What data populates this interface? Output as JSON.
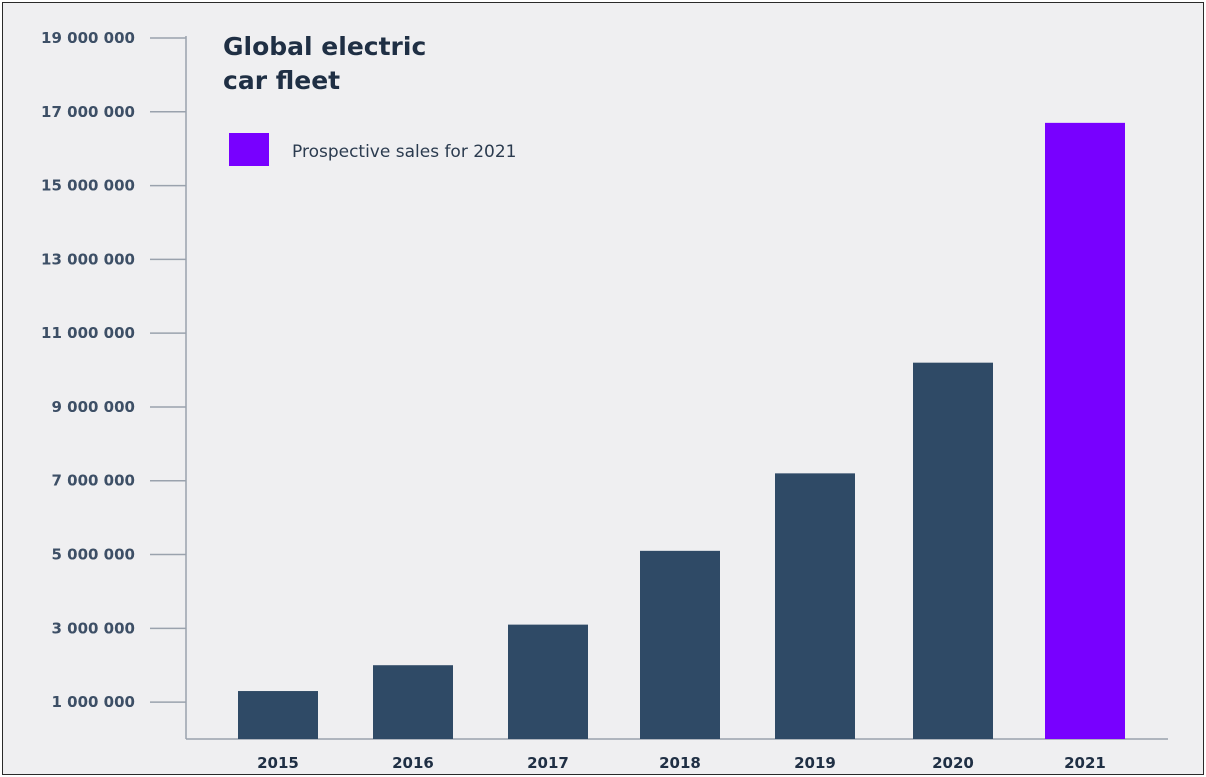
{
  "chart_data": {
    "type": "bar",
    "title_lines": [
      "Global electric",
      "car fleet"
    ],
    "categories": [
      "2015",
      "2016",
      "2017",
      "2018",
      "2019",
      "2020",
      "2021"
    ],
    "values": [
      1300000,
      2000000,
      3100000,
      5100000,
      7200000,
      10200000,
      16700000
    ],
    "highlight_category": "2021",
    "yticks": [
      1000000,
      3000000,
      5000000,
      7000000,
      9000000,
      11000000,
      13000000,
      15000000,
      17000000,
      19000000
    ],
    "ytick_labels": [
      "1 000 000",
      "3 000 000",
      "5 000 000",
      "7 000 000",
      "9 000 000",
      "11 000 000",
      "13 000 000",
      "15 000 000",
      "17 000 000",
      "19 000 000"
    ],
    "ylim": [
      0,
      19000000
    ],
    "xlabel": "",
    "ylabel": "",
    "grid": false,
    "legend": {
      "placement": "top-left",
      "label": "Prospective sales for 2021"
    },
    "colors": {
      "bar": "#2f4a66",
      "highlight": "#7800ff",
      "axis": "#9aa2ad"
    }
  }
}
